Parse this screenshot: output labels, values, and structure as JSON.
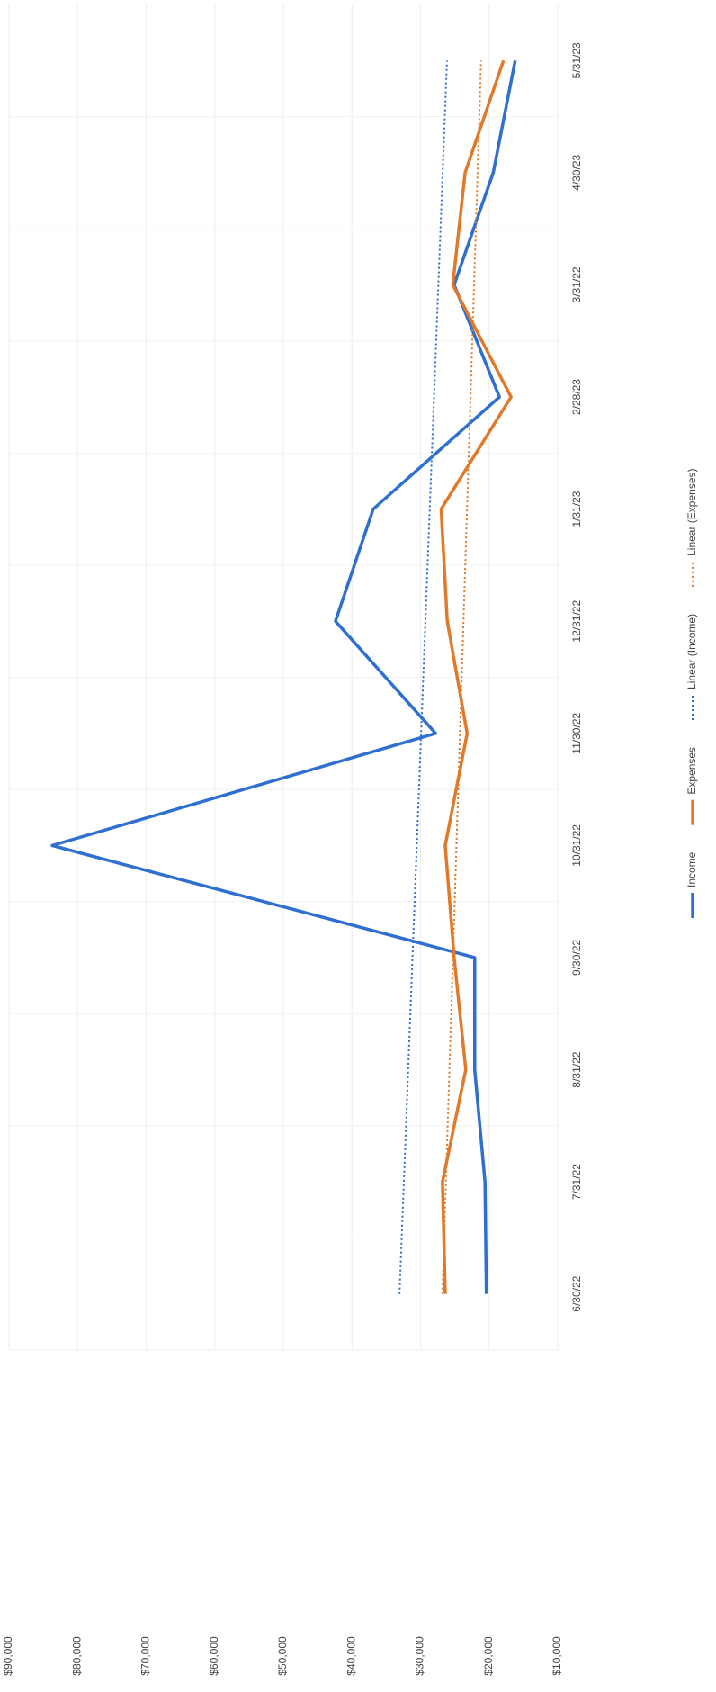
{
  "chart_data": {
    "type": "line",
    "categories": [
      "6/30/22",
      "7/31/22",
      "8/31/22",
      "9/30/22",
      "10/31/22",
      "11/30/22",
      "12/31/22",
      "1/31/23",
      "2/28/23",
      "3/31/22",
      "4/30/23",
      "5/31/23"
    ],
    "series": [
      {
        "name": "Income",
        "color": "#2f6fcf",
        "values": [
          20400,
          20600,
          22100,
          22100,
          83700,
          27800,
          42400,
          36900,
          18500,
          25100,
          19400,
          16200
        ]
      },
      {
        "name": "Expenses",
        "color": "#e07a2a",
        "values": [
          26400,
          26800,
          23400,
          25100,
          26400,
          23200,
          26100,
          27000,
          16800,
          25300,
          23500,
          17900
        ]
      }
    ],
    "trendlines": [
      {
        "name": "Linear (Income)",
        "series": 0,
        "color": "#2f6fcf"
      },
      {
        "name": "Linear (Expenses)",
        "series": 1,
        "color": "#e07a2a"
      }
    ],
    "ylim": [
      10000,
      90000
    ],
    "yticks": [
      {
        "value": 90000,
        "label": "$90,000"
      },
      {
        "value": 80000,
        "label": "$80,000"
      },
      {
        "value": 70000,
        "label": "$70,000"
      },
      {
        "value": 60000,
        "label": "$60,000"
      },
      {
        "value": 50000,
        "label": "$50,000"
      },
      {
        "value": 40000,
        "label": "$40,000"
      },
      {
        "value": 30000,
        "label": "$30,000"
      },
      {
        "value": 20000,
        "label": "$20,000"
      },
      {
        "value": 10000,
        "label": "$10,000"
      }
    ],
    "grid": true,
    "legend": "bottom"
  }
}
